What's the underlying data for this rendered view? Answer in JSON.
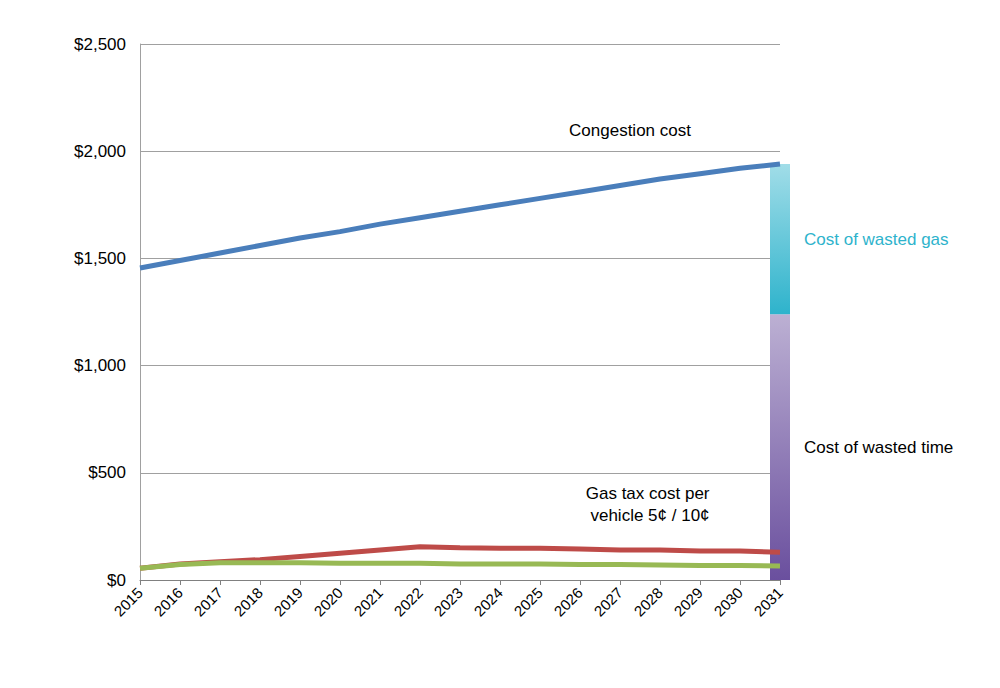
{
  "chart_data": {
    "type": "line",
    "categories": [
      "2015",
      "2016",
      "2017",
      "2018",
      "2019",
      "2020",
      "2021",
      "2022",
      "2023",
      "2024",
      "2025",
      "2026",
      "2027",
      "2028",
      "2029",
      "2030",
      "2031"
    ],
    "series": [
      {
        "name": "Congestion cost",
        "color": "#4a7ebb",
        "values": [
          1455,
          1490,
          1525,
          1560,
          1595,
          1625,
          1660,
          1690,
          1720,
          1750,
          1780,
          1810,
          1840,
          1870,
          1895,
          1920,
          1940
        ]
      },
      {
        "color": "#be4b48",
        "values": [
          55,
          75,
          85,
          95,
          110,
          125,
          140,
          155,
          150,
          148,
          148,
          145,
          140,
          140,
          135,
          135,
          130
        ]
      },
      {
        "color": "#98b954",
        "values": [
          55,
          72,
          80,
          80,
          80,
          78,
          78,
          78,
          75,
          75,
          75,
          72,
          72,
          70,
          68,
          68,
          65
        ]
      }
    ],
    "annotations": [
      {
        "text": "Gas tax cost per vehicle 5¢ / 10¢"
      }
    ],
    "breakdown": {
      "category": "2031",
      "stacked": true,
      "segments": [
        {
          "name": "Cost of wasted time",
          "value": 1240,
          "color": "#6a4f9e"
        },
        {
          "name": "Cost of wasted gas",
          "value": 700,
          "color": "#2eb3cc"
        }
      ]
    },
    "ylim": [
      0,
      2500
    ],
    "yticks": [
      {
        "value": 0,
        "label": "$0"
      },
      {
        "value": 500,
        "label": "$500"
      },
      {
        "value": 1000,
        "label": "$1,000"
      },
      {
        "value": 1500,
        "label": "$1,500"
      },
      {
        "value": 2000,
        "label": "$2,000"
      },
      {
        "value": 2500,
        "label": "$2,500"
      }
    ],
    "grid": true
  }
}
